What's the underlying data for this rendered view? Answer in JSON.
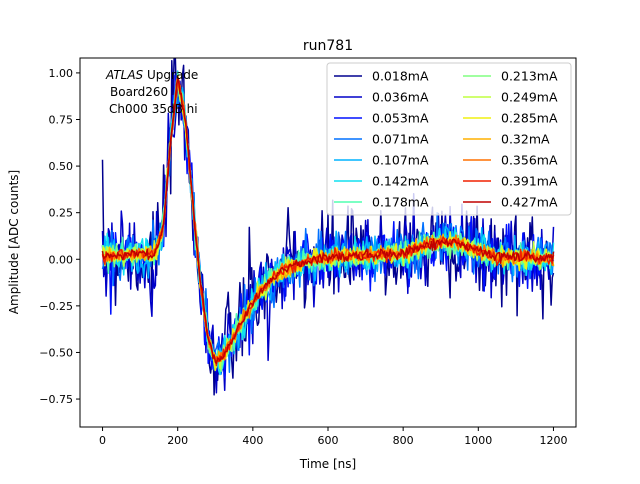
{
  "chart_data": {
    "type": "line",
    "title": "run781",
    "xlabel": "Time [ns]",
    "ylabel": "Amplitude [ADC counts]",
    "xlim": [
      -60,
      1260
    ],
    "ylim": [
      -0.9,
      1.08
    ],
    "xticks": [
      0,
      200,
      400,
      600,
      800,
      1000,
      1200
    ],
    "yticks": [
      -0.75,
      -0.5,
      -0.25,
      0.0,
      0.25,
      0.5,
      0.75,
      1.0
    ],
    "xtick_labels": [
      "0",
      "200",
      "400",
      "600",
      "800",
      "1000",
      "1200"
    ],
    "ytick_labels": [
      "−0.75",
      "−0.50",
      "−0.25",
      "0.00",
      "0.25",
      "0.50",
      "0.75",
      "1.00"
    ],
    "annotation": {
      "line1_italic": "ATLAS",
      "line1_rest": " Upgrade",
      "line2": "Board260",
      "line3": "Ch000 35dB hi"
    },
    "legend_position": "top-right",
    "pulse_shape": {
      "x": [
        0,
        140,
        160,
        180,
        200,
        220,
        240,
        260,
        280,
        300,
        320,
        340,
        380,
        420,
        480,
        540,
        600,
        700,
        800,
        860,
        900,
        940,
        980,
        1020,
        1060,
        1100,
        1150,
        1200
      ],
      "y": [
        0.02,
        0.03,
        0.15,
        0.6,
        0.97,
        0.75,
        0.3,
        -0.12,
        -0.42,
        -0.55,
        -0.52,
        -0.45,
        -0.3,
        -0.17,
        -0.06,
        -0.01,
        0.01,
        0.02,
        0.03,
        0.07,
        0.09,
        0.09,
        0.06,
        0.03,
        0.01,
        0.01,
        0.01,
        0.0
      ]
    },
    "series": [
      {
        "name": "0.018mA",
        "color": "#00008f",
        "noise": 0.22
      },
      {
        "name": "0.036mA",
        "color": "#0000c8",
        "noise": 0.16
      },
      {
        "name": "0.053mA",
        "color": "#0010ff",
        "noise": 0.13
      },
      {
        "name": "0.071mA",
        "color": "#0070ff",
        "noise": 0.11
      },
      {
        "name": "0.107mA",
        "color": "#00b4ff",
        "noise": 0.08
      },
      {
        "name": "0.142mA",
        "color": "#10e0f0",
        "noise": 0.065
      },
      {
        "name": "0.178mA",
        "color": "#50ffb0",
        "noise": 0.055
      },
      {
        "name": "0.213mA",
        "color": "#80ff80",
        "noise": 0.048
      },
      {
        "name": "0.249mA",
        "color": "#c0ff40",
        "noise": 0.042
      },
      {
        "name": "0.285mA",
        "color": "#f0f010",
        "noise": 0.037
      },
      {
        "name": "0.32mA",
        "color": "#ffb000",
        "noise": 0.033
      },
      {
        "name": "0.356mA",
        "color": "#ff7000",
        "noise": 0.03
      },
      {
        "name": "0.391mA",
        "color": "#f02000",
        "noise": 0.027
      },
      {
        "name": "0.427mA",
        "color": "#c00000",
        "noise": 0.024
      }
    ]
  }
}
